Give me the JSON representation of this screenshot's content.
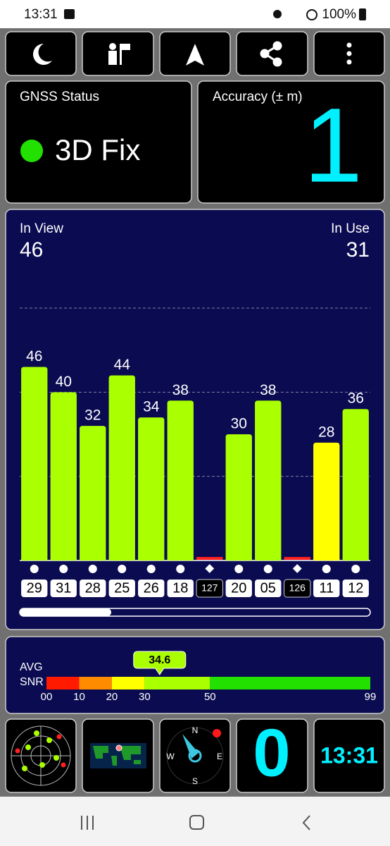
{
  "status_bar": {
    "time": "13:31",
    "battery": "100%"
  },
  "gnss_status": {
    "title": "GNSS Status",
    "fix": "3D Fix"
  },
  "accuracy": {
    "title": "Accuracy (± m)",
    "value": 1
  },
  "satellites": {
    "in_view_label": "In View",
    "in_view": 46,
    "in_use_label": "In Use",
    "in_use": 31,
    "signal_chart": {
      "type": "bar",
      "categories": [
        "29",
        "31",
        "28",
        "25",
        "26",
        "18",
        "127",
        "20",
        "05",
        "126",
        "11",
        "12"
      ],
      "values": [
        46,
        40,
        32,
        44,
        34,
        38,
        null,
        30,
        38,
        null,
        28,
        36
      ],
      "colors": [
        "#aaff00",
        "#aaff00",
        "#aaff00",
        "#aaff00",
        "#aaff00",
        "#aaff00",
        "#ff2020",
        "#aaff00",
        "#aaff00",
        "#ff2020",
        "#ffff00",
        "#aaff00"
      ],
      "ylim": [
        0,
        60
      ],
      "yticks": [
        20,
        40,
        60
      ],
      "grid": true
    }
  },
  "avg_snr": {
    "label_top": "AVG",
    "label_bottom": "SNR",
    "value": 34.6,
    "xlim": [
      0,
      99
    ],
    "xticks": [
      {
        "value": 0,
        "label": "00"
      },
      10,
      20,
      30,
      50,
      99
    ],
    "bands": [
      {
        "to": 10,
        "color": "#ff1a00"
      },
      {
        "to": 20,
        "color": "#ff8c00"
      },
      {
        "to": 30,
        "color": "#ffff00"
      },
      {
        "to": 50,
        "color": "#aaff00"
      },
      {
        "to": 99,
        "color": "#22e000"
      }
    ]
  },
  "bottom": {
    "compass": [
      "N",
      "E",
      "S",
      "W"
    ],
    "count": 0,
    "clock": "13:31"
  }
}
